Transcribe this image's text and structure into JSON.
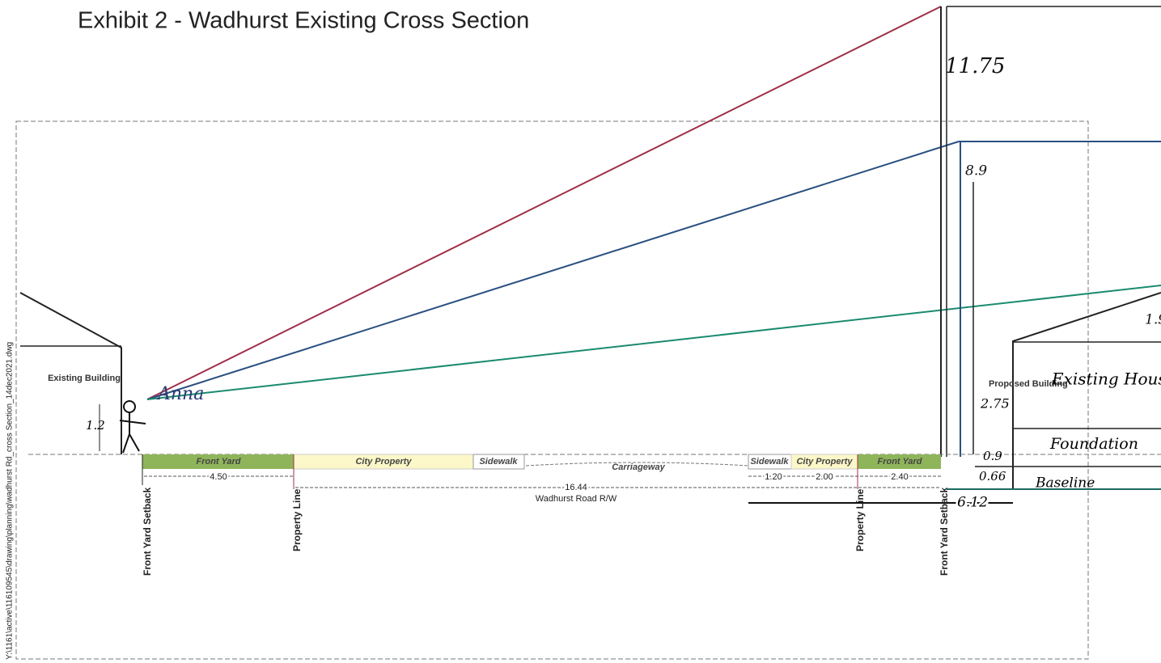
{
  "title": "Exhibit 2 - Wadhurst Existing Cross Section",
  "file_path": "Y:\\1161\\active\\116109545\\drawing\\planning\\wadhurst Rd_cross Section_14dec2021.dwg",
  "heights": {
    "red": "11.75",
    "blue": "8.9",
    "green": "1.9"
  },
  "left_building": {
    "label": "Existing Building",
    "height": "1.2"
  },
  "signature": "Anna",
  "zones": {
    "left": [
      "Front Yard",
      "City Property",
      "Sidewalk"
    ],
    "carriageway": "Carriageway",
    "right": [
      "Sidewalk",
      "City Property",
      "Front Yard"
    ]
  },
  "dimensions": {
    "left_front_yard": "4.50",
    "row": "16.44",
    "row_label": "Wadhurst Road R/W",
    "right_sidewalk": "1.20",
    "right_city": "2.00",
    "right_front_yard": "2.40",
    "setback_to_house": "6.12"
  },
  "markers": [
    "Front Yard Setback",
    "Property Line",
    "Property Line",
    "Front Yard Setback"
  ],
  "right_building": {
    "proposed": "Proposed Building",
    "height": "2.75",
    "existing": "Existing House.",
    "foundation": "Foundation",
    "foundation_height": "0.9",
    "base_height": "0.66",
    "baseline": "Baseline"
  }
}
